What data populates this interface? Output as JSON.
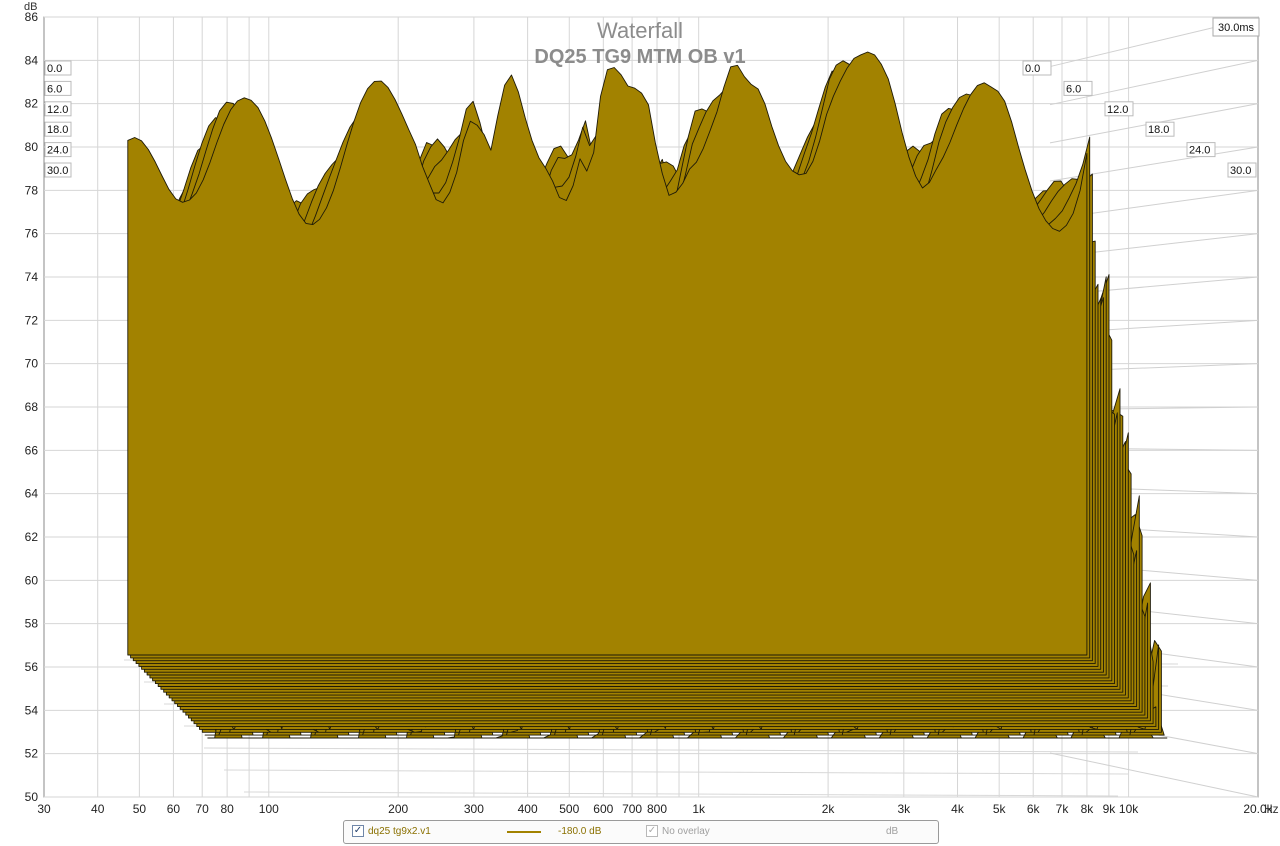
{
  "chart_data": {
    "type": "waterfall",
    "title": "Waterfall",
    "subtitle": "DQ25 TG9 MTM OB v1",
    "ylabel": "dB",
    "xunit": "Hz",
    "xscale": "log",
    "xlim": [
      30,
      20000
    ],
    "ylim": [
      50,
      86
    ],
    "y_ticks": [
      50,
      52,
      54,
      56,
      58,
      60,
      62,
      64,
      66,
      68,
      70,
      72,
      74,
      76,
      78,
      80,
      82,
      84,
      86
    ],
    "x_ticks": [
      {
        "v": 30,
        "label": "30"
      },
      {
        "v": 40,
        "label": "40"
      },
      {
        "v": 50,
        "label": "50"
      },
      {
        "v": 60,
        "label": "60"
      },
      {
        "v": 70,
        "label": "70"
      },
      {
        "v": 80,
        "label": "80"
      },
      {
        "v": 100,
        "label": "100"
      },
      {
        "v": 200,
        "label": "200"
      },
      {
        "v": 300,
        "label": "300"
      },
      {
        "v": 400,
        "label": "400"
      },
      {
        "v": 500,
        "label": "500"
      },
      {
        "v": 600,
        "label": "600"
      },
      {
        "v": 700,
        "label": "700"
      },
      {
        "v": 800,
        "label": "800"
      },
      {
        "v": 1000,
        "label": "1k"
      },
      {
        "v": 2000,
        "label": "2k"
      },
      {
        "v": 3000,
        "label": "3k"
      },
      {
        "v": 4000,
        "label": "4k"
      },
      {
        "v": 5000,
        "label": "5k"
      },
      {
        "v": 6000,
        "label": "6k"
      },
      {
        "v": 7000,
        "label": "7k"
      },
      {
        "v": 8000,
        "label": "8k"
      },
      {
        "v": 9000,
        "label": "9k"
      },
      {
        "v": 10000,
        "label": "10k"
      },
      {
        "v": 20000,
        "label": "20.0k"
      }
    ],
    "time_unit": "ms",
    "time_ticks": [
      0,
      6,
      12,
      18,
      24,
      30
    ],
    "time_tick_labels": [
      "0.0",
      "6.0",
      "12.0",
      "18.0",
      "24.0",
      "30.0"
    ],
    "time_max_label": "30.0ms",
    "grid": true,
    "series": [
      {
        "name": "dq25 tg9x2.v1",
        "fill_color": "#a28200",
        "outline_color": "#1e1a08",
        "front_slice": {
          "time_ms": 0,
          "freq_hz": [
            47,
            50,
            55,
            60,
            65,
            70,
            75,
            80,
            90,
            100,
            120,
            140,
            160,
            180,
            200,
            210,
            220,
            235,
            250,
            270,
            290,
            310,
            330,
            350,
            370,
            400,
            420,
            450,
            480,
            500,
            530,
            560,
            600,
            640,
            680,
            720,
            760,
            800,
            850,
            900,
            950,
            1000,
            1100,
            1200,
            1300,
            1400,
            1500,
            1600,
            1700,
            1800,
            2000,
            2200,
            2400,
            2600,
            2800,
            3000,
            3300,
            3600,
            4000,
            4400,
            4800,
            5200,
            5600,
            6000,
            6500,
            7000,
            7600,
            8000
          ],
          "db": [
            77.0,
            77.5,
            78.2,
            78.8,
            79.6,
            80.0,
            80.2,
            80.0,
            79.0,
            78.5,
            78.0,
            78.4,
            79.3,
            80.0,
            80.6,
            81.0,
            81.3,
            80.6,
            79.2,
            79.2,
            80.6,
            78.5,
            76.5,
            79.6,
            81.2,
            80.5,
            80.5,
            81.0,
            79.5,
            79.2,
            80.2,
            77.5,
            81.2,
            80.6,
            79.8,
            80.5,
            81.5,
            80.2,
            79.2,
            80.3,
            81.2,
            80.8,
            80.5,
            81.2,
            79.8,
            80.5,
            80.2,
            80.5,
            81.0,
            81.3,
            82.7,
            81.8,
            81.2,
            81.5,
            81.8,
            81.0,
            80.2,
            81.2,
            80.8,
            80.2,
            79.6,
            79.8,
            79.2,
            78.8,
            78.2,
            77.2,
            76.8,
            78.2
          ]
        }
      }
    ],
    "legend": {
      "series_name": "dq25 tg9x2.v1",
      "series_checked": true,
      "offset": "-180.0 dB",
      "overlay": "No overlay",
      "overlay_checked": true,
      "unit": "dB"
    }
  }
}
